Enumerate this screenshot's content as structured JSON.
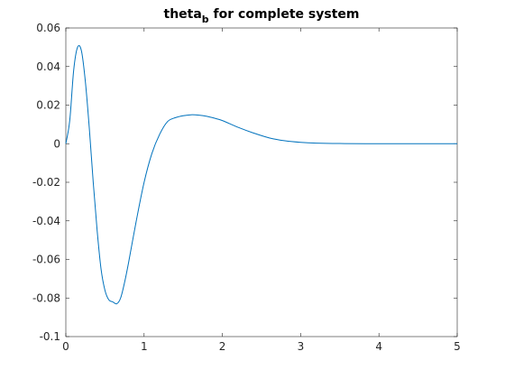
{
  "chart_data": {
    "type": "line",
    "title": "theta",
    "title_subscript": "b",
    "title_suffix": " for complete system",
    "xlabel": "",
    "ylabel": "",
    "xlim": [
      0,
      5
    ],
    "ylim": [
      -0.1,
      0.06
    ],
    "xticks": [
      "0",
      "1",
      "2",
      "3",
      "4",
      "5"
    ],
    "yticks": [
      "0.06",
      "0.04",
      "0.02",
      "0",
      "-0.02",
      "-0.04",
      "-0.06",
      "-0.08",
      "-0.1"
    ],
    "grid": false,
    "line_color": "#0072bd",
    "series": [
      {
        "x": [
          0,
          0.05,
          0.1,
          0.15,
          0.2,
          0.25,
          0.3,
          0.35,
          0.4,
          0.45,
          0.5,
          0.55,
          0.6,
          0.65,
          0.7,
          0.75,
          0.8,
          0.9,
          1.0,
          1.1,
          1.2,
          1.3,
          1.4,
          1.5,
          1.6,
          1.7,
          1.8,
          1.9,
          2.0,
          2.2,
          2.4,
          2.6,
          2.8,
          3.0,
          3.2,
          3.5,
          4.0,
          4.5,
          5.0
        ],
        "y": [
          0,
          0.012,
          0.038,
          0.05,
          0.048,
          0.032,
          0.008,
          -0.02,
          -0.045,
          -0.065,
          -0.076,
          -0.081,
          -0.082,
          -0.083,
          -0.08,
          -0.072,
          -0.062,
          -0.04,
          -0.02,
          -0.005,
          0.005,
          0.0115,
          0.0135,
          0.0145,
          0.015,
          0.0148,
          0.0142,
          0.0132,
          0.012,
          0.0085,
          0.0055,
          0.003,
          0.0015,
          0.0007,
          0.0003,
          0.0001,
          0,
          0,
          0
        ]
      }
    ]
  }
}
